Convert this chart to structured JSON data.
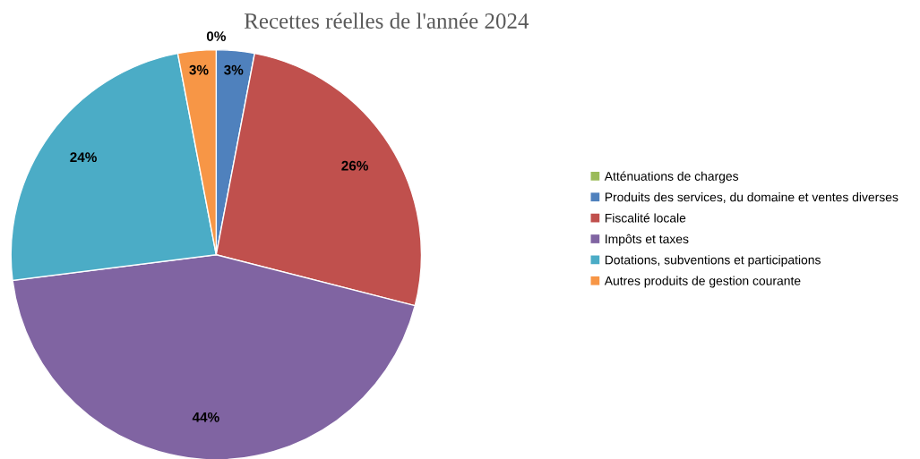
{
  "chart_data": {
    "type": "pie",
    "title": "Recettes réelles de l'année 2024",
    "categories": [
      "Atténuations de charges",
      "Produits des services, du domaine et ventes diverses",
      "Fiscalité locale",
      "Impôts et taxes",
      "Dotations, subventions et participations",
      "Autres produits de gestion courante"
    ],
    "values": [
      0,
      3,
      26,
      44,
      24,
      3
    ],
    "colors": [
      "#9bbb59",
      "#4f81bd",
      "#c0504d",
      "#8064a2",
      "#4bacc6",
      "#f79646"
    ],
    "value_labels": [
      "0%",
      "3%",
      "26%",
      "44%",
      "24%",
      "3%"
    ],
    "legend": "right"
  }
}
